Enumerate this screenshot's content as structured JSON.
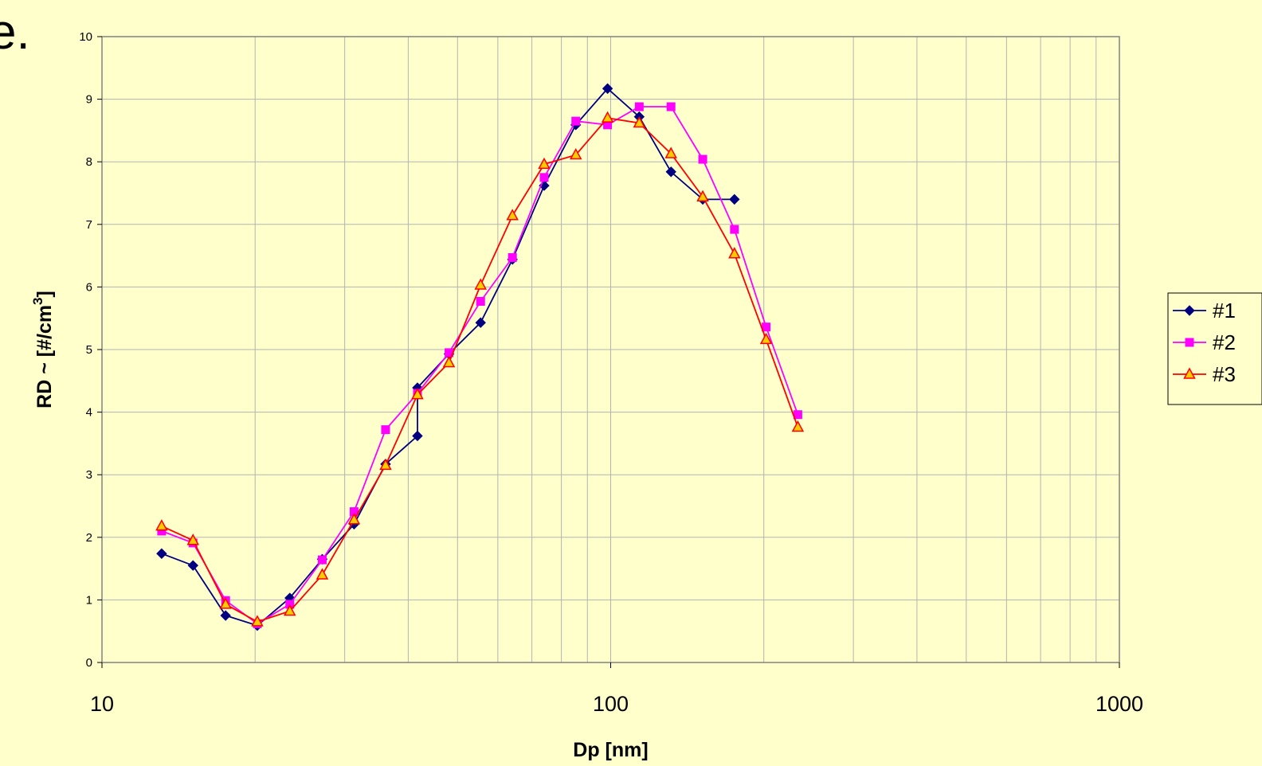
{
  "page_text": {
    "stray_glyph": "e."
  },
  "chart_data": {
    "type": "line",
    "title": "",
    "xlabel": "Dp [nm]",
    "ylabel": "RD ~ [#/cm",
    "ylabel_sup": "3",
    "ylabel_end": "]",
    "xscale": "log",
    "xlim": [
      10,
      1000
    ],
    "ylim": [
      0,
      10
    ],
    "xticks": [
      "10",
      "100",
      "1000"
    ],
    "yticks": [
      "0",
      "1",
      "2",
      "3",
      "4",
      "5",
      "6",
      "7",
      "8",
      "9",
      "10"
    ],
    "grid": true,
    "legend_position": "right",
    "colors": {
      "plot_bg": "#ffffcc",
      "grid": "#b3b3b3",
      "axis": "#808080"
    },
    "series": [
      {
        "name": "#1",
        "color": "#000080",
        "marker": "diamond",
        "x": [
          13.1,
          15.1,
          17.5,
          20.2,
          23.4,
          27.1,
          31.3,
          36.1,
          41.7,
          41.7,
          48.1,
          55.5,
          64.1,
          74.0,
          85.4,
          98.6,
          113.8,
          131.4,
          151.7,
          175.1
        ],
        "y": [
          1.74,
          1.55,
          0.75,
          0.59,
          1.03,
          1.65,
          2.21,
          3.17,
          3.62,
          4.39,
          4.93,
          5.43,
          6.44,
          7.62,
          8.59,
          9.17,
          8.72,
          7.84,
          7.4,
          7.4
        ]
      },
      {
        "name": "#2",
        "color": "#ff00ff",
        "marker": "square",
        "x": [
          13.1,
          15.1,
          17.5,
          20.2,
          23.4,
          27.1,
          31.3,
          36.1,
          41.7,
          48.1,
          55.5,
          64.1,
          74.0,
          85.4,
          98.6,
          113.8,
          131.4,
          151.7,
          175.1,
          202.1,
          233.3
        ],
        "y": [
          2.1,
          1.91,
          0.99,
          0.62,
          0.93,
          1.64,
          2.41,
          3.72,
          4.3,
          4.95,
          5.77,
          6.47,
          7.75,
          8.65,
          8.59,
          8.88,
          8.88,
          8.04,
          6.92,
          5.36,
          3.96
        ]
      },
      {
        "name": "#3",
        "color": "#ff0000",
        "marker": "triangle",
        "x": [
          13.1,
          15.1,
          17.5,
          20.2,
          23.4,
          27.1,
          31.3,
          36.1,
          41.7,
          48.1,
          55.5,
          64.1,
          74.0,
          85.4,
          98.6,
          113.8,
          131.4,
          151.7,
          175.1,
          202.1,
          233.3
        ],
        "y": [
          2.18,
          1.95,
          0.93,
          0.65,
          0.82,
          1.4,
          2.28,
          3.15,
          4.28,
          4.79,
          6.03,
          7.14,
          7.96,
          8.11,
          8.7,
          8.62,
          8.13,
          7.44,
          6.53,
          5.16,
          3.76
        ]
      }
    ]
  }
}
